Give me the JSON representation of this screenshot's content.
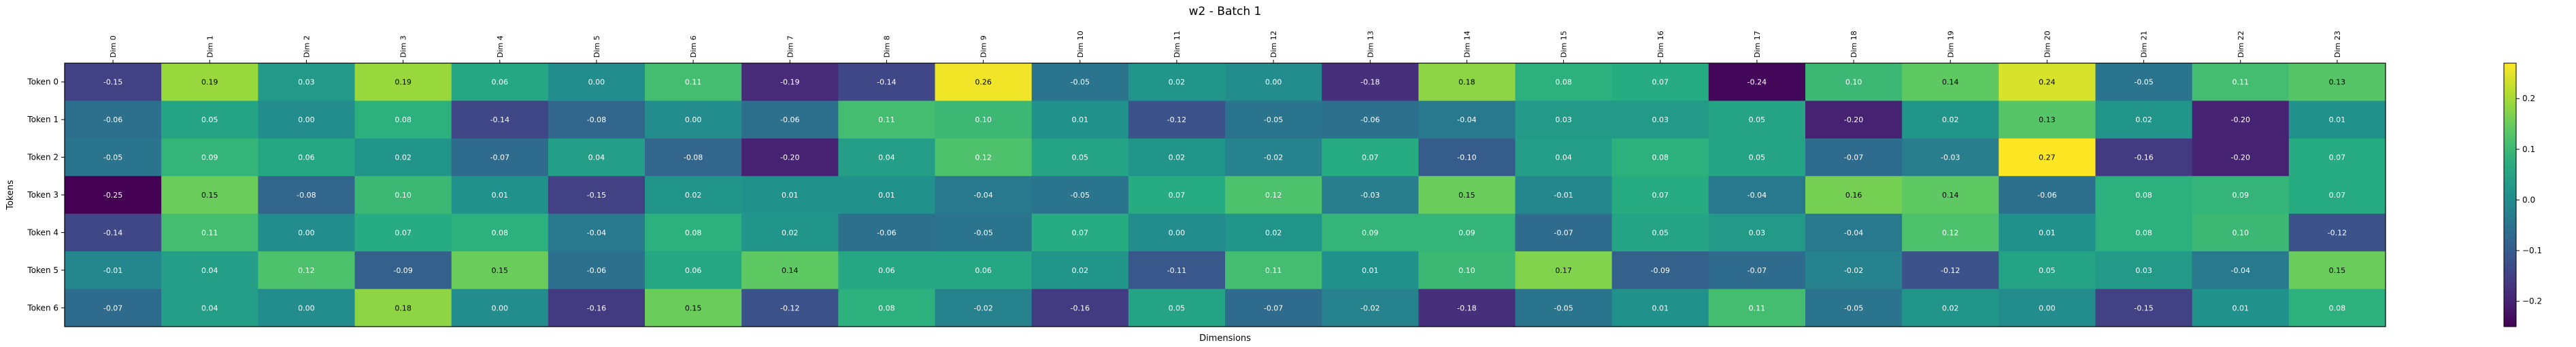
{
  "chart_data": {
    "type": "heatmap",
    "title": "w2 - Batch 1",
    "xlabel": "Dimensions",
    "ylabel": "Tokens",
    "colormap": "viridis",
    "vmin": -0.25,
    "vmax": 0.27,
    "x_categories": [
      "Dim 0",
      "Dim 1",
      "Dim 2",
      "Dim 3",
      "Dim 4",
      "Dim 5",
      "Dim 6",
      "Dim 7",
      "Dim 8",
      "Dim 9",
      "Dim 10",
      "Dim 11",
      "Dim 12",
      "Dim 13",
      "Dim 14",
      "Dim 15",
      "Dim 16",
      "Dim 17",
      "Dim 18",
      "Dim 19",
      "Dim 20",
      "Dim 21",
      "Dim 22",
      "Dim 23"
    ],
    "y_categories": [
      "Token 0",
      "Token 1",
      "Token 2",
      "Token 3",
      "Token 4",
      "Token 5",
      "Token 6"
    ],
    "values": [
      [
        -0.15,
        0.19,
        0.03,
        0.19,
        0.06,
        -0.0,
        0.11,
        -0.19,
        -0.14,
        0.26,
        -0.05,
        0.02,
        -0.0,
        -0.18,
        0.18,
        0.08,
        0.07,
        -0.24,
        0.1,
        0.14,
        0.24,
        -0.05,
        0.11,
        0.13
      ],
      [
        -0.06,
        0.05,
        -0.0,
        0.08,
        -0.14,
        -0.08,
        0.0,
        -0.06,
        0.11,
        0.1,
        0.01,
        -0.12,
        -0.05,
        -0.06,
        -0.04,
        0.03,
        0.03,
        0.05,
        -0.2,
        0.02,
        0.13,
        0.02,
        -0.2,
        0.01
      ],
      [
        -0.05,
        0.09,
        0.06,
        0.02,
        -0.07,
        0.04,
        -0.08,
        -0.2,
        0.04,
        0.12,
        0.05,
        0.02,
        -0.02,
        0.07,
        -0.1,
        0.04,
        0.08,
        0.05,
        -0.07,
        -0.03,
        0.27,
        -0.16,
        -0.2,
        0.07
      ],
      [
        -0.25,
        0.15,
        -0.08,
        0.1,
        0.01,
        -0.15,
        0.02,
        0.01,
        0.01,
        -0.04,
        -0.05,
        0.07,
        0.12,
        -0.03,
        0.15,
        -0.01,
        0.07,
        -0.04,
        0.16,
        0.14,
        -0.06,
        0.08,
        0.09,
        0.07
      ],
      [
        -0.14,
        0.11,
        0.0,
        0.07,
        0.08,
        -0.04,
        0.08,
        0.02,
        -0.06,
        -0.05,
        0.07,
        0.0,
        0.02,
        0.09,
        0.09,
        -0.07,
        0.05,
        0.03,
        -0.04,
        0.12,
        0.01,
        0.08,
        0.1,
        -0.12
      ],
      [
        -0.01,
        0.04,
        0.12,
        -0.09,
        0.15,
        -0.06,
        0.06,
        0.14,
        0.06,
        0.06,
        0.02,
        -0.11,
        0.11,
        0.01,
        0.1,
        0.17,
        -0.09,
        -0.07,
        -0.02,
        -0.12,
        0.05,
        0.03,
        -0.04,
        0.15
      ],
      [
        -0.07,
        0.04,
        -0.0,
        0.18,
        -0.0,
        -0.16,
        0.15,
        -0.12,
        0.08,
        -0.02,
        -0.16,
        0.05,
        -0.07,
        -0.02,
        -0.18,
        -0.05,
        0.01,
        0.11,
        -0.05,
        0.02,
        0.0,
        -0.15,
        0.01,
        0.08
      ]
    ],
    "colorbar_ticks": [
      -0.2,
      -0.1,
      0.0,
      0.1,
      0.2
    ],
    "colorbar_tick_labels": [
      "−0.2",
      "−0.1",
      "0.0",
      "0.1",
      "0.2"
    ],
    "cell_label_format": "2 decimals"
  }
}
